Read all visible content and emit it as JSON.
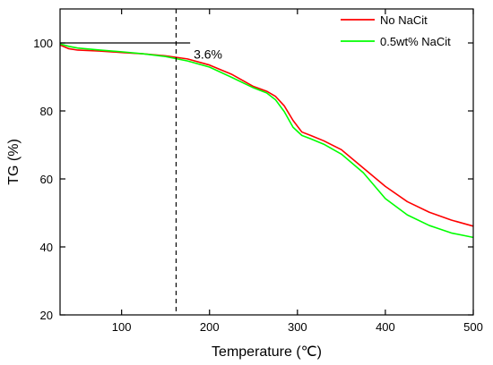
{
  "chart_data": {
    "type": "line",
    "xlabel": "Temperature (℃)",
    "ylabel": "TG (%)",
    "xlim": [
      30,
      500
    ],
    "ylim": [
      20,
      110
    ],
    "xticks": [
      100,
      200,
      300,
      400,
      500
    ],
    "yticks": [
      20,
      40,
      60,
      80,
      100
    ],
    "grid": false,
    "legend_position": "top-right",
    "series": [
      {
        "name": "No NaCit",
        "color": "#ff0000",
        "x": [
          30,
          40,
          50,
          75,
          100,
          125,
          150,
          175,
          200,
          225,
          250,
          265,
          275,
          285,
          295,
          305,
          315,
          330,
          350,
          375,
          400,
          425,
          450,
          475,
          500
        ],
        "y": [
          99.4,
          98.3,
          97.9,
          97.6,
          97.2,
          96.8,
          96.2,
          95.3,
          93.5,
          90.8,
          87.2,
          85.8,
          84.3,
          81.5,
          77.2,
          73.8,
          72.8,
          71.2,
          68.6,
          63.2,
          57.8,
          53.3,
          50.2,
          47.9,
          46.1
        ],
        "marker": "none"
      },
      {
        "name": "0.5wt% NaCit",
        "color": "#00ff00",
        "x": [
          30,
          40,
          50,
          75,
          100,
          125,
          150,
          175,
          200,
          225,
          250,
          265,
          275,
          285,
          295,
          305,
          315,
          330,
          350,
          375,
          400,
          425,
          450,
          475,
          500
        ],
        "y": [
          99.7,
          99.0,
          98.5,
          97.9,
          97.4,
          96.8,
          96.0,
          94.7,
          92.9,
          89.9,
          86.8,
          85.3,
          83.3,
          79.8,
          75.2,
          72.8,
          71.8,
          70.2,
          67.3,
          61.8,
          54.2,
          49.4,
          46.3,
          44.1,
          42.8
        ],
        "marker": "none"
      }
    ],
    "annotations": [
      {
        "text": "3.6%",
        "x": 182,
        "y": 96.7
      }
    ],
    "reference_lines": [
      {
        "orientation": "vertical",
        "x": 162,
        "style": "dashed"
      },
      {
        "orientation": "horizontal",
        "y": 100,
        "x_from": 30,
        "x_to": 178,
        "style": "solid"
      }
    ]
  }
}
